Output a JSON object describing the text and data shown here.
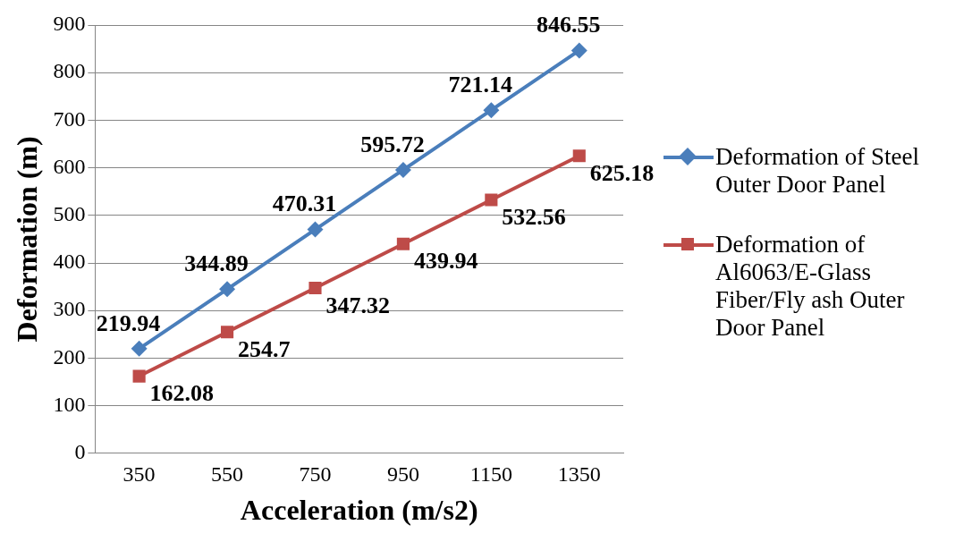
{
  "chart_data": {
    "type": "line",
    "xlabel": "Acceleration (m/s2)",
    "ylabel": "Deformation (m)",
    "categories": [
      "350",
      "550",
      "750",
      "950",
      "1150",
      "1350"
    ],
    "series": [
      {
        "name": "Deformation of Steel Outer Door Panel",
        "color": "#4a7ebb",
        "marker": "diamond",
        "values": [
          219.94,
          344.89,
          470.31,
          595.72,
          721.14,
          846.55
        ]
      },
      {
        "name": "Deformation of Al6063/E-Glass Fiber/Fly ash Outer Door Panel",
        "color": "#be4b48",
        "marker": "square",
        "values": [
          162.08,
          254.7,
          347.32,
          439.94,
          532.56,
          625.18
        ]
      }
    ],
    "ylim": [
      0,
      900
    ],
    "yticks": [
      0,
      100,
      200,
      300,
      400,
      500,
      600,
      700,
      800,
      900
    ],
    "grid": "y",
    "legend": "right",
    "data_labels": true
  }
}
